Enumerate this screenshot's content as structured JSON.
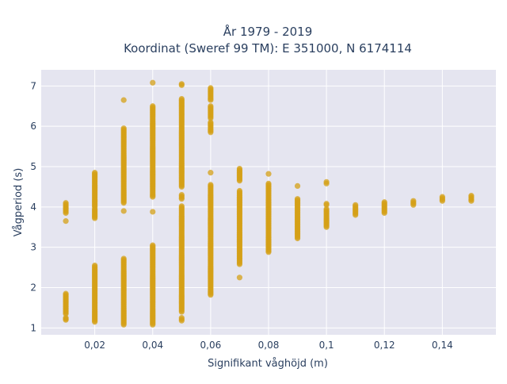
{
  "chart_data": {
    "type": "scatter",
    "title_lines": [
      "År 1979 - 2019",
      "Koordinat (Sweref 99 TM): E 351000, N 6174114"
    ],
    "xlabel": "Signifikant våghöjd (m)",
    "ylabel": "Vågperiod (s)",
    "xlim": [
      0.0015,
      0.1585
    ],
    "ylim": [
      0.83,
      7.4
    ],
    "x_ticks": [
      0.02,
      0.04,
      0.06,
      0.08,
      0.1,
      0.12,
      0.14
    ],
    "x_tick_labels": [
      "0,02",
      "0,04",
      "0,06",
      "0,08",
      "0,1",
      "0,12",
      "0,14"
    ],
    "y_ticks": [
      1,
      2,
      3,
      4,
      5,
      6,
      7
    ],
    "y_tick_labels": [
      "1",
      "2",
      "3",
      "4",
      "5",
      "6",
      "7"
    ],
    "grid": true,
    "legend": "none",
    "marker_color": "#D4A017",
    "plot_background": "#E5E5F0",
    "columns": [
      {
        "x": 0.01,
        "ranges": [
          [
            1.2,
            1.25
          ],
          [
            1.35,
            1.85
          ],
          [
            3.65,
            3.65
          ],
          [
            3.85,
            4.1
          ]
        ]
      },
      {
        "x": 0.02,
        "ranges": [
          [
            1.15,
            2.55
          ],
          [
            3.72,
            3.95
          ],
          [
            4.0,
            4.85
          ]
        ]
      },
      {
        "x": 0.03,
        "ranges": [
          [
            1.08,
            2.72
          ],
          [
            3.9,
            3.9
          ],
          [
            4.1,
            5.95
          ],
          [
            6.65,
            6.65
          ]
        ]
      },
      {
        "x": 0.04,
        "ranges": [
          [
            1.08,
            3.05
          ],
          [
            3.88,
            3.88
          ],
          [
            4.25,
            6.5
          ],
          [
            7.08,
            7.08
          ]
        ]
      },
      {
        "x": 0.05,
        "ranges": [
          [
            1.18,
            1.25
          ],
          [
            1.4,
            4.02
          ],
          [
            4.2,
            4.3
          ],
          [
            4.5,
            6.68
          ],
          [
            7.02,
            7.05
          ]
        ]
      },
      {
        "x": 0.06,
        "ranges": [
          [
            1.82,
            4.55
          ],
          [
            4.85,
            4.85
          ],
          [
            5.85,
            6.1
          ],
          [
            6.2,
            6.5
          ],
          [
            6.65,
            6.95
          ]
        ]
      },
      {
        "x": 0.07,
        "ranges": [
          [
            2.25,
            2.25
          ],
          [
            2.58,
            4.4
          ],
          [
            4.65,
            4.95
          ]
        ]
      },
      {
        "x": 0.08,
        "ranges": [
          [
            2.88,
            4.58
          ],
          [
            4.82,
            4.82
          ]
        ]
      },
      {
        "x": 0.09,
        "ranges": [
          [
            3.22,
            4.2
          ],
          [
            4.52,
            4.52
          ]
        ]
      },
      {
        "x": 0.1,
        "ranges": [
          [
            3.5,
            3.95
          ],
          [
            4.05,
            4.08
          ],
          [
            4.58,
            4.62
          ]
        ]
      },
      {
        "x": 0.11,
        "ranges": [
          [
            3.8,
            4.05
          ]
        ]
      },
      {
        "x": 0.12,
        "ranges": [
          [
            3.85,
            4.12
          ]
        ]
      },
      {
        "x": 0.13,
        "ranges": [
          [
            4.05,
            4.15
          ]
        ]
      },
      {
        "x": 0.14,
        "ranges": [
          [
            4.15,
            4.25
          ]
        ]
      },
      {
        "x": 0.15,
        "ranges": [
          [
            4.15,
            4.28
          ]
        ]
      }
    ]
  }
}
